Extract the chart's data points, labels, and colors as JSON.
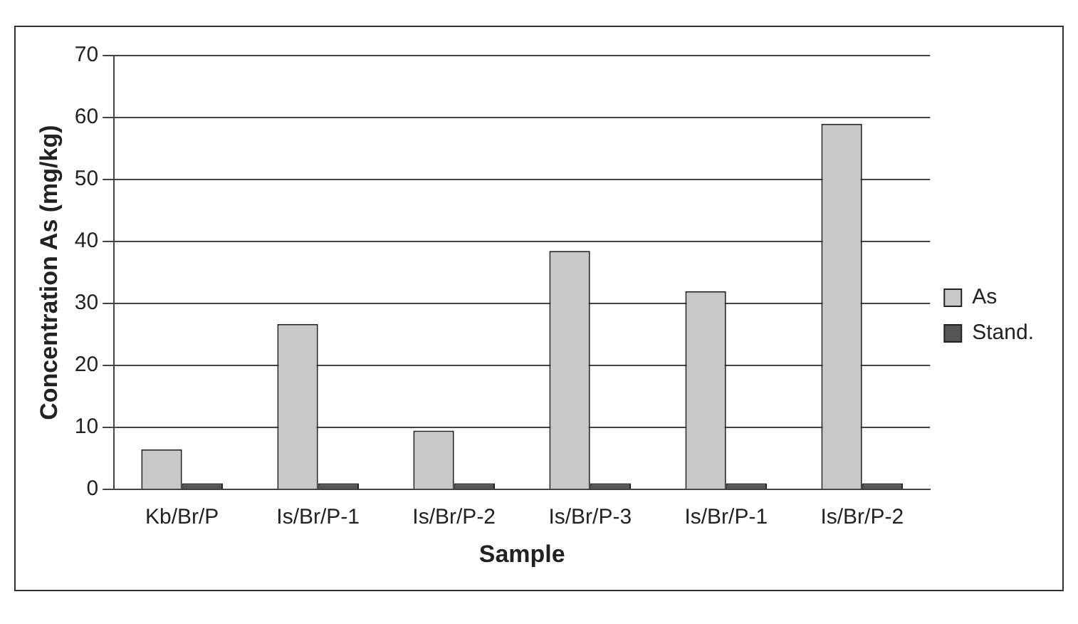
{
  "chart_data": {
    "type": "bar",
    "xlabel": "Sample",
    "ylabel": "Concentration As (mg/kg)",
    "categories": [
      "Kb/Br/P",
      "Is/Br/P-1",
      "Is/Br/P-2",
      "Is/Br/P-3",
      "Is/Br/P-1",
      "Is/Br/P-2"
    ],
    "series": [
      {
        "name": "As",
        "color": "#c8c8c8",
        "values": [
          6.5,
          26.7,
          9.5,
          38.5,
          32,
          59
        ]
      },
      {
        "name": "Stand.",
        "color": "#555555",
        "values": [
          1,
          1,
          1,
          1,
          1,
          1
        ]
      }
    ],
    "ylim": [
      0,
      70
    ],
    "yticks": [
      0,
      10,
      20,
      30,
      40,
      50,
      60,
      70
    ],
    "grid": "y",
    "legend": "right"
  }
}
